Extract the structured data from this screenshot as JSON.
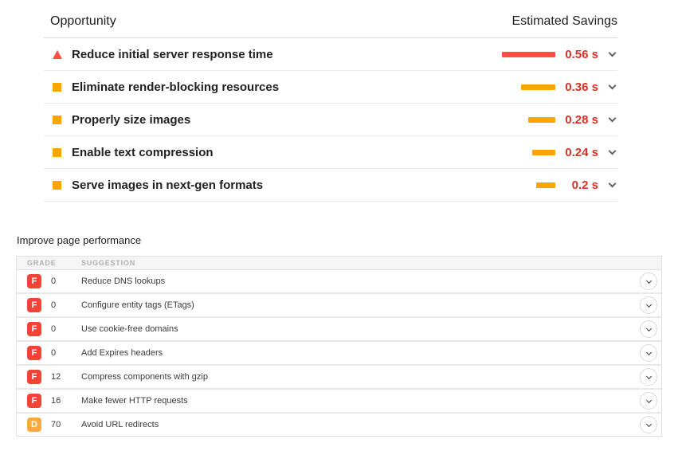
{
  "opportunities": {
    "header": {
      "opportunity": "Opportunity",
      "savings": "Estimated Savings"
    },
    "colors": {
      "red": "#ff4e42",
      "orange": "#ffa400",
      "value_text": "#d93025"
    },
    "rows": [
      {
        "label": "Reduce initial server response time",
        "savings": "0.56 s",
        "savings_seconds": 0.56,
        "severity": "red"
      },
      {
        "label": "Eliminate render-blocking resources",
        "savings": "0.36 s",
        "savings_seconds": 0.36,
        "severity": "orange"
      },
      {
        "label": "Properly size images",
        "savings": "0.28 s",
        "savings_seconds": 0.28,
        "severity": "orange"
      },
      {
        "label": "Enable text compression",
        "savings": "0.24 s",
        "savings_seconds": 0.24,
        "severity": "orange"
      },
      {
        "label": "Serve images in next-gen formats",
        "savings": "0.2 s",
        "savings_seconds": 0.2,
        "severity": "orange"
      }
    ]
  },
  "performance": {
    "title": "Improve page performance",
    "columns": {
      "grade": "GRADE",
      "suggestion": "SUGGESTION"
    },
    "grade_colors": {
      "F": "#f44336",
      "D": "#fbab3c"
    },
    "rows": [
      {
        "grade": "F",
        "score": "0",
        "suggestion": "Reduce DNS lookups"
      },
      {
        "grade": "F",
        "score": "0",
        "suggestion": "Configure entity tags (ETags)"
      },
      {
        "grade": "F",
        "score": "0",
        "suggestion": "Use cookie-free domains"
      },
      {
        "grade": "F",
        "score": "0",
        "suggestion": "Add Expires headers"
      },
      {
        "grade": "F",
        "score": "12",
        "suggestion": "Compress components with gzip"
      },
      {
        "grade": "F",
        "score": "16",
        "suggestion": "Make fewer HTTP requests"
      },
      {
        "grade": "D",
        "score": "70",
        "suggestion": "Avoid URL redirects"
      }
    ]
  }
}
